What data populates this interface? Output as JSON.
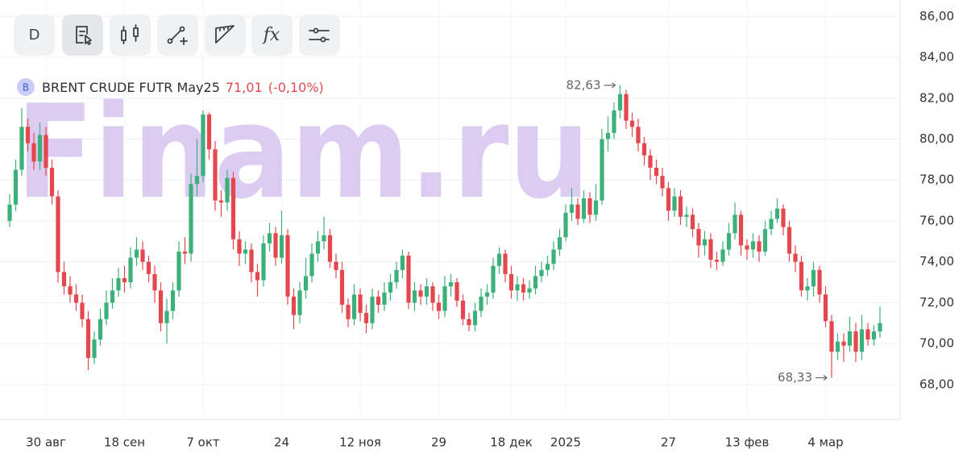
{
  "toolbar": {
    "timeframe": "D",
    "functions": "fx"
  },
  "watermark": "Finam.ru",
  "quote": {
    "badge": "B",
    "last": "71,01",
    "change": "(-0,10%)"
  },
  "chart_data": {
    "type": "candlestick",
    "title": "BRENT CRUDE FUTR May25",
    "up_color": "#3cb07a",
    "down_color": "#e4474d",
    "grid": true,
    "ylim": [
      66.3,
      86.8
    ],
    "yticks": [
      {
        "value": 68,
        "label": "68,00"
      },
      {
        "value": 70,
        "label": "70,00"
      },
      {
        "value": 72,
        "label": "72,00"
      },
      {
        "value": 74,
        "label": "74,00"
      },
      {
        "value": 76,
        "label": "76,00"
      },
      {
        "value": 78,
        "label": "78,00"
      },
      {
        "value": 80,
        "label": "80,00"
      },
      {
        "value": 82,
        "label": "82,00"
      },
      {
        "value": 84,
        "label": "84,00"
      },
      {
        "value": 86,
        "label": "86,00"
      }
    ],
    "annotations": [
      {
        "value": 82.63,
        "label": "82,63"
      },
      {
        "value": 68.33,
        "label": "68,33"
      }
    ],
    "categories": [
      null,
      null,
      null,
      null,
      null,
      null,
      "30 авг",
      null,
      null,
      null,
      null,
      null,
      null,
      null,
      null,
      null,
      null,
      null,
      null,
      "18 сен",
      null,
      null,
      null,
      null,
      null,
      null,
      null,
      null,
      null,
      null,
      null,
      null,
      "7 окт",
      null,
      null,
      null,
      null,
      null,
      null,
      null,
      null,
      null,
      null,
      null,
      null,
      "24",
      null,
      null,
      null,
      null,
      null,
      null,
      null,
      null,
      null,
      null,
      null,
      null,
      "12 ноя",
      null,
      null,
      null,
      null,
      null,
      null,
      null,
      null,
      null,
      null,
      null,
      null,
      "29",
      null,
      null,
      null,
      null,
      null,
      null,
      null,
      null,
      null,
      null,
      null,
      "18 дек",
      null,
      null,
      null,
      null,
      null,
      null,
      null,
      null,
      "2025",
      null,
      null,
      null,
      null,
      null,
      null,
      null,
      null,
      null,
      null,
      null,
      null,
      null,
      null,
      null,
      null,
      "27",
      null,
      null,
      null,
      null,
      null,
      null,
      null,
      null,
      null,
      null,
      null,
      null,
      "13 фев",
      null,
      null,
      null,
      null,
      null,
      null,
      null,
      null,
      null,
      null,
      null,
      null,
      "4 мар",
      null,
      null,
      null,
      null,
      null,
      null,
      null,
      null,
      null
    ],
    "open": [
      76.0,
      76.8,
      78.5,
      80.6,
      79.8,
      78.9,
      80.2,
      78.6,
      77.2,
      73.5,
      72.8,
      72.4,
      72.0,
      71.2,
      69.3,
      70.2,
      71.2,
      72.0,
      72.6,
      73.2,
      73.0,
      74.2,
      74.6,
      74.0,
      73.4,
      72.6,
      71.0,
      71.6,
      72.6,
      74.5,
      74.4,
      77.8,
      78.2,
      81.2,
      79.5,
      77.0,
      76.9,
      78.1,
      75.1,
      74.4,
      74.6,
      73.5,
      73.1,
      74.9,
      75.4,
      74.2,
      75.3,
      72.3,
      71.4,
      72.6,
      73.3,
      74.4,
      75.0,
      75.3,
      74.0,
      73.6,
      71.9,
      71.2,
      72.4,
      71.5,
      71.0,
      72.3,
      71.9,
      72.5,
      73.0,
      73.6,
      74.3,
      72.0,
      72.6,
      72.3,
      72.8,
      72.0,
      71.6,
      72.8,
      73.0,
      72.1,
      71.2,
      70.9,
      71.6,
      72.3,
      72.5,
      73.8,
      74.4,
      73.4,
      72.6,
      72.9,
      72.5,
      72.7,
      73.3,
      73.6,
      73.9,
      74.6,
      75.2,
      76.4,
      76.8,
      76.1,
      77.1,
      76.3,
      77.0,
      80.0,
      80.3,
      81.4,
      82.2,
      80.9,
      80.6,
      79.8,
      79.2,
      78.6,
      78.2,
      77.6,
      76.5,
      77.2,
      76.2,
      76.3,
      75.6,
      74.8,
      75.1,
      74.1,
      74.0,
      74.6,
      75.4,
      76.3,
      74.8,
      74.6,
      75.0,
      74.5,
      75.6,
      76.1,
      76.6,
      75.7,
      74.4,
      74.0,
      72.6,
      72.8,
      73.6,
      72.4,
      71.1,
      69.6,
      70.1,
      69.9,
      70.6,
      69.6,
      70.7,
      70.2,
      70.6
    ],
    "high": [
      77.3,
      79.0,
      81.5,
      81.0,
      80.3,
      80.8,
      80.6,
      79.0,
      77.5,
      74.0,
      73.3,
      72.9,
      72.4,
      71.6,
      70.6,
      71.7,
      72.6,
      73.2,
      73.7,
      73.8,
      74.7,
      75.2,
      75.0,
      74.3,
      73.8,
      73.0,
      72.2,
      73.0,
      75.0,
      75.2,
      78.3,
      80.0,
      81.4,
      81.3,
      79.9,
      77.5,
      78.5,
      78.4,
      75.5,
      75.0,
      74.9,
      73.9,
      75.3,
      75.9,
      75.7,
      76.5,
      75.6,
      72.7,
      73.0,
      74.2,
      74.9,
      75.5,
      76.2,
      75.6,
      74.4,
      74.0,
      72.2,
      72.9,
      72.7,
      71.9,
      72.7,
      72.6,
      73.0,
      73.4,
      74.0,
      74.6,
      74.5,
      73.0,
      72.9,
      73.2,
      73.0,
      72.4,
      73.3,
      73.4,
      73.2,
      72.4,
      71.5,
      72.0,
      72.7,
      72.9,
      74.2,
      74.7,
      74.6,
      73.8,
      73.3,
      73.2,
      73.1,
      73.8,
      74.0,
      74.3,
      75.0,
      75.6,
      76.8,
      77.6,
      77.1,
      77.5,
      77.4,
      77.8,
      80.5,
      81.1,
      81.8,
      82.63,
      82.4,
      81.3,
      81.0,
      80.1,
      79.5,
      79.0,
      78.6,
      77.9,
      77.6,
      77.5,
      76.7,
      76.6,
      75.9,
      75.5,
      75.4,
      74.5,
      75.0,
      75.9,
      76.9,
      76.5,
      75.1,
      75.4,
      75.3,
      76.0,
      76.5,
      77.1,
      76.8,
      76.0,
      74.8,
      74.3,
      73.2,
      74.0,
      73.8,
      72.8,
      71.4,
      70.5,
      70.5,
      71.3,
      71.0,
      71.4,
      71.0,
      70.9,
      71.8
    ],
    "low": [
      75.7,
      76.5,
      78.2,
      79.4,
      78.5,
      78.5,
      78.2,
      76.8,
      73.0,
      72.4,
      72.0,
      71.6,
      70.8,
      68.7,
      69.0,
      69.9,
      70.9,
      71.7,
      72.3,
      72.5,
      72.7,
      73.8,
      73.6,
      73.0,
      72.0,
      70.6,
      70.0,
      71.2,
      72.3,
      73.9,
      74.0,
      77.2,
      77.9,
      79.0,
      76.5,
      76.2,
      76.5,
      74.6,
      73.8,
      73.9,
      73.0,
      72.3,
      72.8,
      74.5,
      73.8,
      73.9,
      71.9,
      70.7,
      71.0,
      72.2,
      73.0,
      74.0,
      74.6,
      73.7,
      73.2,
      71.5,
      70.8,
      70.9,
      71.1,
      70.5,
      70.7,
      71.5,
      71.6,
      72.1,
      72.7,
      73.2,
      71.7,
      71.6,
      71.9,
      71.9,
      71.6,
      71.2,
      71.3,
      72.3,
      71.8,
      70.9,
      70.6,
      70.6,
      71.3,
      71.9,
      72.2,
      73.4,
      73.0,
      72.2,
      72.1,
      72.1,
      72.2,
      72.4,
      73.0,
      73.3,
      73.6,
      74.3,
      75.0,
      76.0,
      75.8,
      75.9,
      75.9,
      76.0,
      76.8,
      79.4,
      80.0,
      81.0,
      80.5,
      80.1,
      79.4,
      78.7,
      78.0,
      77.8,
      77.2,
      76.0,
      76.2,
      75.8,
      75.7,
      75.2,
      74.2,
      74.3,
      73.7,
      73.6,
      73.8,
      74.3,
      75.1,
      74.3,
      74.1,
      74.2,
      74.0,
      74.3,
      75.3,
      75.9,
      75.3,
      74.0,
      73.5,
      72.3,
      72.1,
      72.3,
      72.0,
      70.8,
      68.33,
      69.2,
      69.1,
      69.6,
      69.1,
      69.2,
      69.9,
      69.9,
      70.3
    ],
    "close": [
      76.8,
      78.5,
      80.6,
      79.8,
      78.9,
      80.2,
      78.6,
      77.2,
      73.5,
      72.8,
      72.4,
      72.0,
      71.2,
      69.3,
      70.2,
      71.2,
      72.0,
      72.6,
      73.2,
      73.0,
      74.2,
      74.6,
      74.0,
      73.4,
      72.6,
      71.0,
      71.6,
      72.6,
      74.5,
      74.4,
      77.8,
      78.2,
      81.2,
      79.5,
      77.0,
      76.9,
      78.1,
      75.1,
      74.4,
      74.6,
      73.5,
      73.1,
      74.9,
      75.4,
      74.2,
      75.3,
      72.3,
      71.4,
      72.6,
      73.3,
      74.4,
      75.0,
      75.3,
      74.0,
      73.6,
      71.9,
      71.2,
      72.4,
      71.5,
      71.0,
      72.3,
      71.9,
      72.5,
      73.0,
      73.6,
      74.3,
      72.0,
      72.6,
      72.3,
      72.8,
      72.0,
      71.6,
      72.8,
      73.0,
      72.1,
      71.2,
      70.9,
      71.6,
      72.3,
      72.5,
      73.8,
      74.4,
      73.4,
      72.6,
      72.9,
      72.5,
      72.7,
      73.3,
      73.6,
      73.9,
      74.6,
      75.2,
      76.4,
      76.8,
      76.1,
      77.1,
      76.3,
      77.0,
      80.0,
      80.3,
      81.4,
      82.2,
      80.9,
      80.6,
      79.8,
      79.2,
      78.6,
      78.2,
      77.6,
      76.5,
      77.2,
      76.2,
      76.3,
      75.6,
      74.8,
      75.1,
      74.1,
      74.0,
      74.6,
      75.4,
      76.3,
      74.8,
      74.6,
      75.0,
      74.5,
      75.6,
      76.1,
      76.6,
      75.7,
      74.4,
      74.0,
      72.6,
      72.8,
      73.6,
      72.4,
      71.1,
      69.6,
      70.1,
      69.9,
      70.6,
      69.6,
      70.7,
      70.2,
      70.6,
      71.0
    ]
  }
}
